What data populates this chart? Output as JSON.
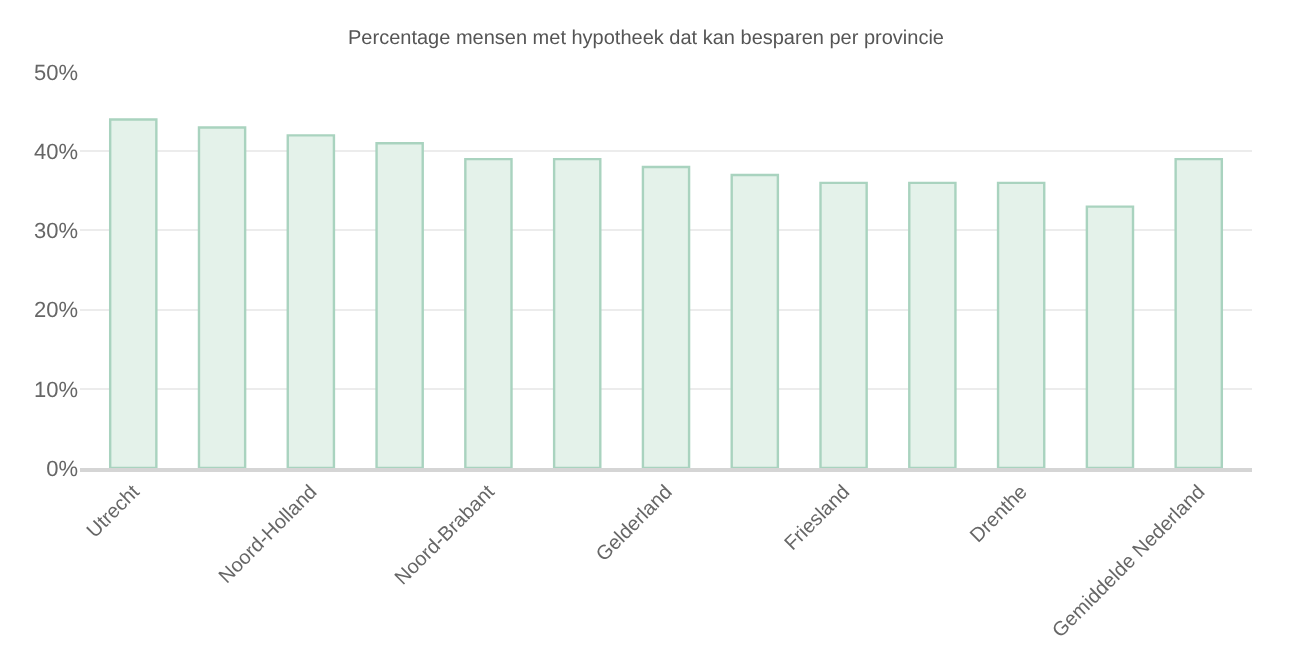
{
  "chart_data": {
    "type": "bar",
    "title": "Percentage mensen met hypotheek dat kan besparen per provincie",
    "categories": [
      "Utrecht",
      null,
      "Noord-Holland",
      null,
      "Noord-Brabant",
      null,
      "Gelderland",
      null,
      "Friesland",
      null,
      "Drenthe",
      null,
      "Gemiddelde Nederland"
    ],
    "values": [
      44,
      43,
      42,
      41,
      39,
      39,
      38,
      37,
      36,
      36,
      36,
      33,
      39
    ],
    "color": "#e4f2ea",
    "ylim": [
      0,
      50
    ],
    "yticks": [
      {
        "value": 0,
        "label": "0%"
      },
      {
        "value": 10,
        "label": "10%"
      },
      {
        "value": 20,
        "label": "20%"
      },
      {
        "value": 30,
        "label": "30%"
      },
      {
        "value": 40,
        "label": "40%"
      },
      {
        "value": 50,
        "label": "50%"
      }
    ],
    "grid": "y",
    "legend": false
  }
}
